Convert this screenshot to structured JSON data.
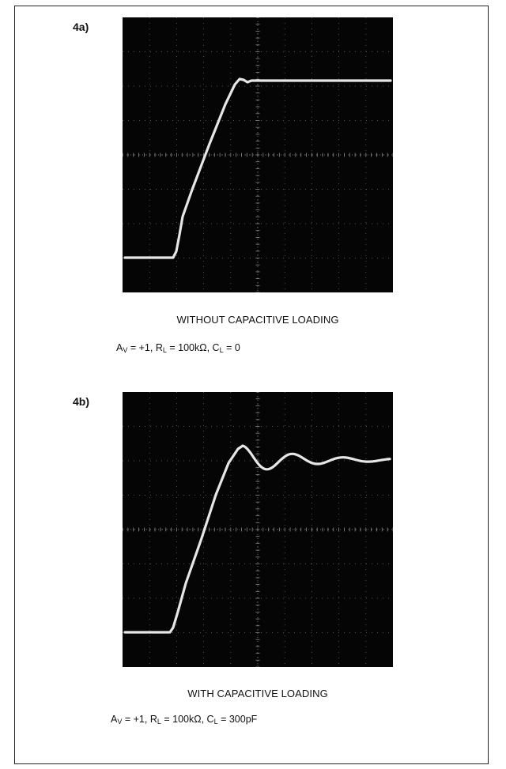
{
  "figures": [
    {
      "label": "4a)",
      "caption": "WITHOUT CAPACITIVE LOADING",
      "conditions": {
        "av": "= +1, ",
        "rl": "= 100kΩ, ",
        "cl": "= 0"
      }
    },
    {
      "label": "4b)",
      "caption": "WITH CAPACITIVE LOADING",
      "conditions": {
        "av": "= +1, ",
        "rl": "= 100kΩ, ",
        "cl": "= 300pF"
      }
    }
  ],
  "colors": {
    "trace": "#f2f2f2",
    "screen": "#050505",
    "grid": "#8a8a8a"
  }
}
